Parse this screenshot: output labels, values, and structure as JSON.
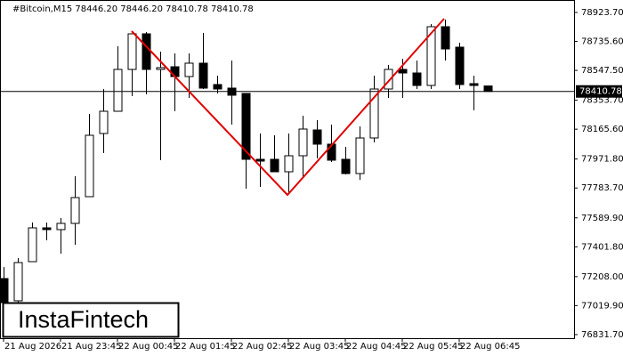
{
  "chart_data": {
    "type": "candlestick",
    "title": "#Bitcoin,M15  78446.20 78446.20 78410.78 78410.78",
    "brand": "InstaFintech",
    "up_color": "#ffffff",
    "down_color": "#000000",
    "categories": [
      "21 Aug 2026",
      null,
      null,
      null,
      "21 Aug 23:45",
      null,
      null,
      null,
      "22 Aug 00:45",
      null,
      null,
      null,
      "22 Aug 01:45",
      null,
      null,
      null,
      "22 Aug 02:45",
      null,
      null,
      null,
      "22 Aug 03:45",
      null,
      null,
      null,
      "22 Aug 04:45",
      null,
      null,
      null,
      "22 Aug 05:45",
      null,
      null,
      null,
      "22 Aug 06:45",
      null,
      null
    ],
    "open": [
      77195.5,
      77051.0,
      77305.3,
      77524.9,
      77513.4,
      77553.8,
      77727.3,
      78137.6,
      78282.1,
      78553.8,
      78785.0,
      78553.8,
      78571.1,
      78507.5,
      78594.3,
      78455.5,
      78432.4,
      78397.7,
      77970.0,
      77970.0,
      77889.1,
      77993.1,
      78160.7,
      78068.3,
      77970.0,
      77877.5,
      78108.7,
      78426.6,
      78553.8,
      78530.6,
      78449.7,
      78831.2,
      78698.3,
      78461.3,
      78446.2
    ],
    "high": [
      77270.6,
      77328.4,
      77559.6,
      77559.6,
      77588.5,
      77860.2,
      78264.8,
      78426.6,
      78704.1,
      78785.0,
      78796.5,
      78669.4,
      78657.8,
      78657.8,
      78790.8,
      78513.3,
      78611.6,
      78397.7,
      78137.6,
      78126.1,
      78137.6,
      78253.2,
      78224.3,
      78195.4,
      78050.9,
      78183.9,
      78513.3,
      78582.7,
      78623.1,
      78611.6,
      78848.6,
      78877.5,
      78727.2,
      78513.3,
      78446.2
    ],
    "low": [
      77039.4,
      77039.4,
      77305.3,
      77444.0,
      77357.3,
      77415.1,
      77727.3,
      78010.5,
      78282.1,
      78380.4,
      78391.9,
      77964.2,
      78282.1,
      78368.8,
      78426.6,
      78397.7,
      78195.4,
      77779.3,
      77790.8,
      77889.1,
      77744.6,
      77848.6,
      77975.8,
      77952.7,
      77871.7,
      77837.1,
      78079.8,
      78368.8,
      78368.8,
      78426.6,
      78426.6,
      78611.6,
      78426.6,
      78287.9,
      78410.78
    ],
    "close": [
      77039.4,
      77299.5,
      77524.9,
      77513.4,
      77553.8,
      77721.5,
      78126.1,
      78282.1,
      78553.8,
      78785.0,
      78553.8,
      78565.3,
      78507.5,
      78594.3,
      78432.4,
      78426.6,
      78386.2,
      77970.0,
      77958.4,
      77889.1,
      77993.1,
      78166.5,
      78068.3,
      77964.2,
      77877.5,
      78108.7,
      78426.6,
      78553.8,
      78530.6,
      78449.7,
      78831.2,
      78686.7,
      78455.5,
      78449.7,
      78410.78
    ],
    "current_price": 78410.78,
    "ylim": [
      76808.2,
      79004.6
    ],
    "yticks": [
      {
        "value": 78923.7,
        "label": "78923.70"
      },
      {
        "value": 78735.6,
        "label": "78735.60"
      },
      {
        "value": 78547.5,
        "label": "78547.50"
      },
      {
        "value": 78353.7,
        "label": "78353.70"
      },
      {
        "value": 78165.6,
        "label": "78165.60"
      },
      {
        "value": 77971.8,
        "label": "77971.80"
      },
      {
        "value": 77783.7,
        "label": "77783.70"
      },
      {
        "value": 77589.9,
        "label": "77589.90"
      },
      {
        "value": 77401.8,
        "label": "77401.80"
      },
      {
        "value": 77208.0,
        "label": "77208.00"
      },
      {
        "value": 77019.9,
        "label": "77019.90"
      },
      {
        "value": 76831.7,
        "label": "76831.70"
      }
    ]
  }
}
